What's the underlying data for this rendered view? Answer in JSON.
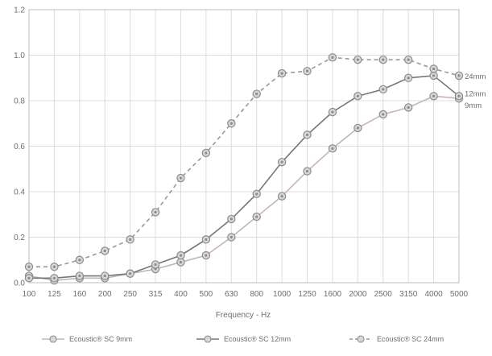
{
  "chart_data": {
    "type": "line",
    "title": "",
    "xlabel": "Frequency - Hz",
    "ylabel": "",
    "ylim": [
      0,
      1.2
    ],
    "yticks": [
      "0.0",
      "0.2",
      "0.4",
      "0.6",
      "0.8",
      "1.0",
      "1.2"
    ],
    "categories": [
      "100",
      "125",
      "160",
      "200",
      "250",
      "315",
      "400",
      "500",
      "630",
      "800",
      "1000",
      "1250",
      "1600",
      "2000",
      "2500",
      "3150",
      "4000",
      "5000"
    ],
    "grid": true,
    "legend_position": "bottom",
    "series": [
      {
        "name": "Ecoustic® SC 9mm",
        "end_label": "9mm",
        "style": "solid",
        "color": "#c9b4b4",
        "values": [
          0.03,
          0.01,
          0.02,
          0.02,
          0.04,
          0.06,
          0.09,
          0.12,
          0.2,
          0.29,
          0.38,
          0.49,
          0.59,
          0.68,
          0.74,
          0.77,
          0.82,
          0.81
        ]
      },
      {
        "name": "Ecoustic® SC 12mm",
        "end_label": "12mm",
        "style": "solid",
        "color": "#777777",
        "values": [
          0.02,
          0.02,
          0.03,
          0.03,
          0.04,
          0.08,
          0.12,
          0.19,
          0.28,
          0.39,
          0.53,
          0.65,
          0.75,
          0.82,
          0.85,
          0.9,
          0.91,
          0.82
        ]
      },
      {
        "name": "Ecoustic® SC 24mm",
        "end_label": "24mm",
        "style": "dashed",
        "color": "#999999",
        "values": [
          0.07,
          0.07,
          0.1,
          0.14,
          0.19,
          0.31,
          0.46,
          0.57,
          0.7,
          0.83,
          0.92,
          0.93,
          0.99,
          0.98,
          0.98,
          0.98,
          0.94,
          0.91
        ]
      }
    ]
  }
}
